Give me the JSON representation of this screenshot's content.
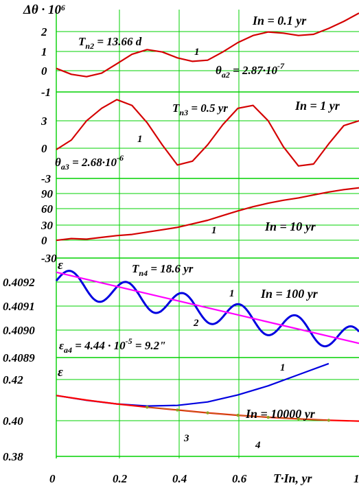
{
  "figure": {
    "x_axis_label": "T·In, yr",
    "x_tick_labels": [
      "0",
      "0.2",
      "0.4",
      "0.6",
      "1"
    ],
    "x_ticks": [
      0,
      0.2,
      0.4,
      0.6,
      1
    ],
    "gridline_color": "#00d000"
  },
  "chart_data": [
    {
      "type": "line",
      "panel": 1,
      "y_symbol": "Δθ · 10⁶",
      "title": "In = 0.1 yr",
      "annotations": [
        "T_n2 = 13.66 d",
        "θ_a2 = 2.87·10⁻⁷"
      ],
      "annotation_main": "T",
      "annotation_sub": "n2",
      "annotation_rest": " = 13.66 d",
      "annotation2_main": "θ",
      "annotation2_sub": "a2",
      "annotation2_rest": " = 2.87·10",
      "annotation2_exp": "-7",
      "y_tick_labels": [
        "2",
        "1",
        "0",
        "-1"
      ],
      "ylim": [
        -1,
        2.5
      ],
      "xlim": [
        0,
        1
      ],
      "series": [
        {
          "label": "1",
          "color": "#d40000",
          "x": [
            0,
            0.05,
            0.1,
            0.15,
            0.2,
            0.25,
            0.3,
            0.35,
            0.4,
            0.45,
            0.5,
            0.55,
            0.6,
            0.65,
            0.7,
            0.75,
            0.8,
            0.85,
            0.9,
            0.95,
            1
          ],
          "values": [
            0.0,
            -0.25,
            -0.35,
            -0.2,
            0.2,
            0.6,
            0.8,
            0.7,
            0.45,
            0.3,
            0.35,
            0.7,
            1.1,
            1.4,
            1.55,
            1.5,
            1.4,
            1.45,
            1.7,
            2.0,
            2.35
          ]
        }
      ]
    },
    {
      "type": "line",
      "panel": 2,
      "title": "In = 1 yr",
      "annotations": [
        "T_n3 = 0.5 yr",
        "θ_a3 = 2.68·10⁻⁶"
      ],
      "annotation_main": "T",
      "annotation_sub": "n3",
      "annotation_rest": " = 0.5 yr",
      "annotation2_main": "θ",
      "annotation2_sub": "a3",
      "annotation2_rest": " = 2.68·10",
      "annotation2_exp": "-6",
      "y_tick_labels": [
        "3",
        "0",
        "-3"
      ],
      "ylim": [
        -3,
        6
      ],
      "xlim": [
        0,
        1
      ],
      "series": [
        {
          "label": "1",
          "color": "#d40000",
          "x": [
            0,
            0.05,
            0.1,
            0.15,
            0.2,
            0.25,
            0.3,
            0.35,
            0.4,
            0.45,
            0.5,
            0.55,
            0.6,
            0.65,
            0.7,
            0.75,
            0.8,
            0.85,
            0.9,
            0.95,
            1
          ],
          "values": [
            0.0,
            1.0,
            3.0,
            4.3,
            5.2,
            4.6,
            2.8,
            0.5,
            -1.6,
            -1.2,
            0.5,
            2.6,
            4.3,
            4.6,
            3.0,
            0.3,
            -1.7,
            -1.5,
            0.6,
            2.5,
            3.0
          ]
        }
      ]
    },
    {
      "type": "line",
      "panel": 3,
      "title": "In = 10 yr",
      "y_tick_labels": [
        "90",
        "60",
        "30",
        "0",
        "-30"
      ],
      "ylim": [
        -30,
        105
      ],
      "xlim": [
        0,
        1
      ],
      "series": [
        {
          "label": "1",
          "color": "#d40000",
          "x": [
            0,
            0.05,
            0.1,
            0.15,
            0.2,
            0.25,
            0.3,
            0.35,
            0.4,
            0.45,
            0.5,
            0.55,
            0.6,
            0.65,
            0.7,
            0.75,
            0.8,
            0.85,
            0.9,
            0.95,
            1
          ],
          "values": [
            0,
            3,
            2,
            5,
            8,
            10,
            14,
            18,
            22,
            28,
            34,
            42,
            50,
            57,
            63,
            68,
            72,
            77,
            82,
            86,
            89
          ]
        }
      ]
    },
    {
      "type": "line",
      "panel": 4,
      "y_symbol": "ε",
      "title": "In = 100 yr",
      "annotations": [
        "T_n4 = 18.6 yr",
        "ε_a4 = 4.44 · 10⁻⁵ = 9.2\""
      ],
      "annotation_main": "T",
      "annotation_sub": "n4",
      "annotation_rest": " = 18.6 yr",
      "annotation2_main": "ε",
      "annotation2_sub": "a4",
      "annotation2_rest": " = 4.44 · 10",
      "annotation2_exp": "-5",
      "annotation2_tail": " = 9.2\"",
      "y_tick_labels": [
        "0.4092",
        "0.4091",
        "0.4090",
        "0.4089"
      ],
      "ylim": [
        0.4089,
        0.40925
      ],
      "xlim": [
        0,
        1
      ],
      "series": [
        {
          "label": "1",
          "color": "#0000e0",
          "oscillation_period": 0.186,
          "oscillation_amplitude": 4.44e-05,
          "x": [
            0,
            1
          ],
          "values": [
            0.40917,
            0.40896
          ]
        },
        {
          "label": "2",
          "color": "#ff00ff",
          "x": [
            0,
            1
          ],
          "values": [
            0.4092,
            0.40895
          ]
        }
      ]
    },
    {
      "type": "line",
      "panel": 5,
      "y_symbol": "ε",
      "title": "In = 10000 yr",
      "y_tick_labels": [
        "0.42",
        "0.40",
        "0.38"
      ],
      "ylim": [
        0.378,
        0.428
      ],
      "xlim": [
        0,
        1
      ],
      "series": [
        {
          "label": "1",
          "color": "#0000e0",
          "x": [
            0,
            0.1,
            0.2,
            0.3,
            0.4,
            0.5,
            0.6,
            0.7,
            0.8,
            0.9
          ],
          "values": [
            0.4092,
            0.4068,
            0.405,
            0.404,
            0.4043,
            0.406,
            0.4095,
            0.414,
            0.4195,
            0.425
          ]
        },
        {
          "label": "3",
          "color": "#ff0000",
          "x": [
            0,
            0.1,
            0.2,
            0.3,
            0.4,
            0.5,
            0.6,
            0.7,
            0.8,
            0.9,
            1
          ],
          "values": [
            0.4092,
            0.4069,
            0.405,
            0.4034,
            0.402,
            0.4006,
            0.3994,
            0.3984,
            0.3976,
            0.3969,
            0.3965
          ]
        },
        {
          "label": "4",
          "color": "#90a020",
          "markers": true,
          "x": [
            0.3,
            0.4,
            0.5,
            0.6,
            0.7,
            0.8,
            0.9
          ],
          "values": [
            0.4034,
            0.402,
            0.4006,
            0.3994,
            0.3984,
            0.3976,
            0.3969
          ]
        }
      ]
    }
  ]
}
